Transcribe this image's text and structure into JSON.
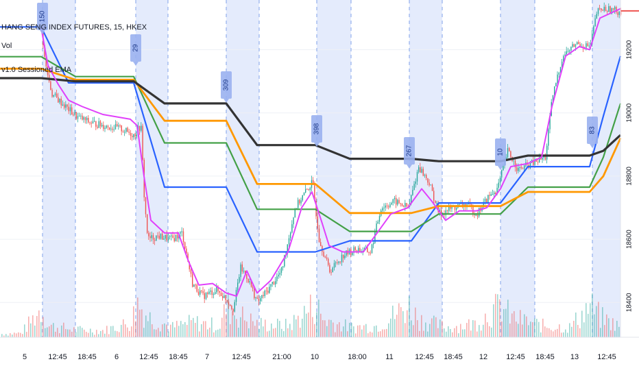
{
  "header": {
    "symbol_title": "HANG SENG INDEX FUTURES, 15, HKEX",
    "indicator_vol": "Vol",
    "indicator_ema": "v1.0 Sessioned EMA"
  },
  "chart_data": {
    "type": "line",
    "x_ticks": [
      "5",
      "12:45",
      "18:45",
      "6",
      "12:45",
      "18:45",
      "7",
      "12:45",
      "21:00",
      "10",
      "18:00",
      "11",
      "12:45",
      "18:45",
      "12",
      "12:45",
      "18:45",
      "13",
      "12:45"
    ],
    "y_ticks": [
      18400,
      18600,
      18800,
      19000,
      19200
    ],
    "ylim": [
      18290,
      19340
    ],
    "last_price_label": "",
    "session_badges": [
      "150",
      "29",
      "309",
      "398",
      "267",
      "10",
      "83"
    ],
    "series": [
      {
        "name": "",
        "color": "#2962ff",
        "points": [
          [
            0,
            19272
          ],
          [
            60,
            19272
          ],
          [
            100,
            19095
          ],
          [
            195,
            19095
          ],
          [
            240,
            18765
          ],
          [
            330,
            18765
          ],
          [
            375,
            18560
          ],
          [
            460,
            18560
          ],
          [
            510,
            18595
          ],
          [
            600,
            18595
          ],
          [
            640,
            18715
          ],
          [
            730,
            18715
          ],
          [
            770,
            18830
          ],
          [
            860,
            18830
          ],
          [
            880,
            18990
          ],
          [
            905,
            19180
          ]
        ]
      },
      {
        "name": "",
        "color": "#43a047",
        "points": [
          [
            0,
            19178
          ],
          [
            60,
            19178
          ],
          [
            110,
            19115
          ],
          [
            195,
            19115
          ],
          [
            240,
            18905
          ],
          [
            330,
            18905
          ],
          [
            375,
            18695
          ],
          [
            460,
            18695
          ],
          [
            510,
            18625
          ],
          [
            600,
            18625
          ],
          [
            640,
            18680
          ],
          [
            730,
            18680
          ],
          [
            770,
            18765
          ],
          [
            860,
            18765
          ],
          [
            880,
            18860
          ],
          [
            905,
            19030
          ]
        ]
      },
      {
        "name": "",
        "color": "#ff9800",
        "points": [
          [
            0,
            19140
          ],
          [
            60,
            19140
          ],
          [
            110,
            19105
          ],
          [
            195,
            19105
          ],
          [
            240,
            18975
          ],
          [
            330,
            18975
          ],
          [
            375,
            18775
          ],
          [
            460,
            18775
          ],
          [
            510,
            18683
          ],
          [
            600,
            18683
          ],
          [
            640,
            18705
          ],
          [
            730,
            18705
          ],
          [
            770,
            18750
          ],
          [
            860,
            18750
          ],
          [
            880,
            18800
          ],
          [
            905,
            18920
          ]
        ]
      },
      {
        "name": "",
        "color": "#333333",
        "points": [
          [
            0,
            19110
          ],
          [
            60,
            19110
          ],
          [
            110,
            19100
          ],
          [
            195,
            19100
          ],
          [
            240,
            19030
          ],
          [
            330,
            19030
          ],
          [
            375,
            18898
          ],
          [
            460,
            18898
          ],
          [
            510,
            18855
          ],
          [
            600,
            18855
          ],
          [
            640,
            18847
          ],
          [
            730,
            18847
          ],
          [
            770,
            18865
          ],
          [
            860,
            18865
          ],
          [
            880,
            18880
          ],
          [
            905,
            18930
          ]
        ]
      },
      {
        "name": "",
        "color": "#e040fb",
        "points": [
          [
            60,
            19270
          ],
          [
            70,
            19150
          ],
          [
            85,
            19090
          ],
          [
            100,
            19040
          ],
          [
            120,
            19020
          ],
          [
            150,
            18995
          ],
          [
            190,
            18980
          ],
          [
            200,
            18960
          ],
          [
            210,
            18800
          ],
          [
            220,
            18660
          ],
          [
            240,
            18620
          ],
          [
            260,
            18620
          ],
          [
            275,
            18530
          ],
          [
            290,
            18455
          ],
          [
            310,
            18460
          ],
          [
            330,
            18430
          ],
          [
            345,
            18420
          ],
          [
            360,
            18500
          ],
          [
            375,
            18430
          ],
          [
            395,
            18470
          ],
          [
            420,
            18560
          ],
          [
            440,
            18700
          ],
          [
            455,
            18750
          ],
          [
            470,
            18650
          ],
          [
            480,
            18580
          ],
          [
            500,
            18560
          ],
          [
            530,
            18560
          ],
          [
            550,
            18620
          ],
          [
            570,
            18680
          ],
          [
            595,
            18700
          ],
          [
            615,
            18760
          ],
          [
            630,
            18720
          ],
          [
            650,
            18660
          ],
          [
            670,
            18690
          ],
          [
            695,
            18690
          ],
          [
            710,
            18700
          ],
          [
            730,
            18760
          ],
          [
            745,
            18830
          ],
          [
            770,
            18840
          ],
          [
            790,
            18860
          ],
          [
            805,
            19020
          ],
          [
            825,
            19180
          ],
          [
            845,
            19210
          ],
          [
            860,
            19200
          ],
          [
            875,
            19300
          ],
          [
            905,
            19330
          ]
        ]
      }
    ],
    "price_path": [
      [
        0,
        19272
      ],
      [
        60,
        19272
      ],
      [
        65,
        19160
      ],
      [
        75,
        19060
      ],
      [
        90,
        19030
      ],
      [
        110,
        18990
      ],
      [
        130,
        18970
      ],
      [
        150,
        18960
      ],
      [
        175,
        18950
      ],
      [
        195,
        18930
      ],
      [
        205,
        18960
      ],
      [
        210,
        18720
      ],
      [
        215,
        18600
      ],
      [
        230,
        18610
      ],
      [
        250,
        18600
      ],
      [
        265,
        18620
      ],
      [
        280,
        18460
      ],
      [
        295,
        18420
      ],
      [
        315,
        18440
      ],
      [
        330,
        18410
      ],
      [
        340,
        18380
      ],
      [
        350,
        18510
      ],
      [
        360,
        18480
      ],
      [
        375,
        18400
      ],
      [
        390,
        18440
      ],
      [
        410,
        18500
      ],
      [
        430,
        18700
      ],
      [
        445,
        18750
      ],
      [
        455,
        18780
      ],
      [
        465,
        18600
      ],
      [
        480,
        18500
      ],
      [
        500,
        18550
      ],
      [
        520,
        18570
      ],
      [
        540,
        18560
      ],
      [
        555,
        18700
      ],
      [
        575,
        18720
      ],
      [
        595,
        18700
      ],
      [
        610,
        18830
      ],
      [
        625,
        18780
      ],
      [
        640,
        18680
      ],
      [
        660,
        18700
      ],
      [
        680,
        18710
      ],
      [
        695,
        18680
      ],
      [
        710,
        18730
      ],
      [
        725,
        18760
      ],
      [
        740,
        18880
      ],
      [
        755,
        18820
      ],
      [
        775,
        18840
      ],
      [
        795,
        18860
      ],
      [
        805,
        19050
      ],
      [
        820,
        19180
      ],
      [
        840,
        19220
      ],
      [
        860,
        19210
      ],
      [
        870,
        19320
      ],
      [
        880,
        19330
      ],
      [
        905,
        19320
      ]
    ],
    "volume_profile": [
      [
        0,
        4
      ],
      [
        30,
        5
      ],
      [
        60,
        35
      ],
      [
        70,
        14
      ],
      [
        110,
        9
      ],
      [
        150,
        8
      ],
      [
        190,
        18
      ],
      [
        200,
        42
      ],
      [
        215,
        25
      ],
      [
        250,
        12
      ],
      [
        280,
        18
      ],
      [
        320,
        14
      ],
      [
        330,
        38
      ],
      [
        345,
        28
      ],
      [
        375,
        16
      ],
      [
        420,
        14
      ],
      [
        460,
        40
      ],
      [
        470,
        22
      ],
      [
        510,
        12
      ],
      [
        550,
        14
      ],
      [
        595,
        38
      ],
      [
        610,
        22
      ],
      [
        650,
        12
      ],
      [
        690,
        16
      ],
      [
        730,
        38
      ],
      [
        745,
        24
      ],
      [
        790,
        14
      ],
      [
        830,
        12
      ],
      [
        860,
        38
      ],
      [
        875,
        24
      ],
      [
        905,
        12
      ]
    ],
    "grid": true
  },
  "colors": {
    "session_band": "#dbe4fb",
    "grid": "#eef0f5",
    "badge_bg": "#9ab1f0",
    "badge_text": "#1e3a8a",
    "candle_up": "#26a69a",
    "candle_down": "#ef5350",
    "axis_text": "#131722",
    "last_price": "#ef5350"
  }
}
